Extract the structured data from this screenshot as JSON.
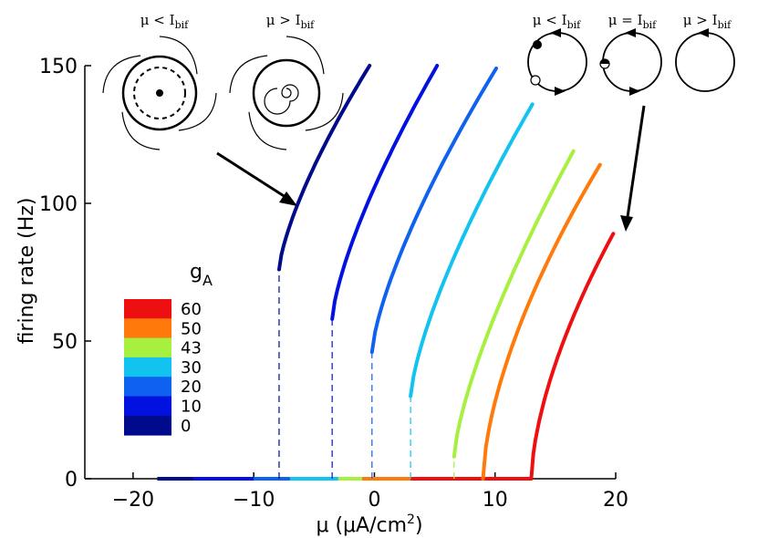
{
  "chart_data": {
    "type": "line",
    "xlabel_main": "μ (μA/cm",
    "xlabel_sup": "2",
    "xlabel_end": ")",
    "ylabel": "firing rate (Hz)",
    "xlim": [
      -24,
      20
    ],
    "ylim": [
      0,
      150
    ],
    "x_ticks": [
      -20,
      -10,
      0,
      10,
      20
    ],
    "x_tick_labels": [
      "−20",
      "−10",
      "0",
      "10",
      "20"
    ],
    "y_ticks": [
      0,
      50,
      100,
      150
    ],
    "y_tick_labels": [
      "0",
      "50",
      "100",
      "150"
    ],
    "legend_title_main": "g",
    "legend_title_sub": "A",
    "legend_placement": "lower-left",
    "series": [
      {
        "name": "0",
        "color": "#000a8c",
        "bif_x": -7.9,
        "bif_y": 76,
        "end_x": -0.4,
        "end_y": 150,
        "zero_from": -18,
        "zero_to": -15
      },
      {
        "name": "10",
        "color": "#0011e0",
        "bif_x": -3.5,
        "bif_y": 58,
        "end_x": 5.2,
        "end_y": 150,
        "zero_from": -15,
        "zero_to": -10
      },
      {
        "name": "20",
        "color": "#0f62f0",
        "bif_x": -0.2,
        "bif_y": 46,
        "end_x": 10.1,
        "end_y": 149,
        "zero_from": -10,
        "zero_to": -7
      },
      {
        "name": "30",
        "color": "#12c3f0",
        "bif_x": 3.0,
        "bif_y": 30,
        "end_x": 13.1,
        "end_y": 136,
        "zero_from": -7,
        "zero_to": -3
      },
      {
        "name": "43",
        "color": "#a7f040",
        "bif_x": 6.6,
        "bif_y": 8,
        "end_x": 16.5,
        "end_y": 119,
        "zero_from": -3,
        "zero_to": -1
      },
      {
        "name": "50",
        "color": "#ff7a0a",
        "bif_x": 9.0,
        "bif_y": 0,
        "end_x": 18.7,
        "end_y": 114,
        "zero_from": -1,
        "zero_to": 3
      },
      {
        "name": "60",
        "color": "#ee1010",
        "bif_x": 13.0,
        "bif_y": 0,
        "end_x": 19.8,
        "end_y": 89,
        "zero_from": 3,
        "zero_to": 13.0
      }
    ],
    "inset_left_labels": [
      {
        "mu": "μ",
        "rel": "<",
        "I": "I",
        "sub": "bif"
      },
      {
        "mu": "μ",
        "rel": ">",
        "I": "I",
        "sub": "bif"
      }
    ],
    "inset_right_labels": [
      {
        "mu": "μ",
        "rel": "<",
        "I": "I",
        "sub": "bif"
      },
      {
        "mu": "μ",
        "rel": "=",
        "I": "I",
        "sub": "bif"
      },
      {
        "mu": "μ",
        "rel": ">",
        "I": "I",
        "sub": "bif"
      }
    ]
  }
}
